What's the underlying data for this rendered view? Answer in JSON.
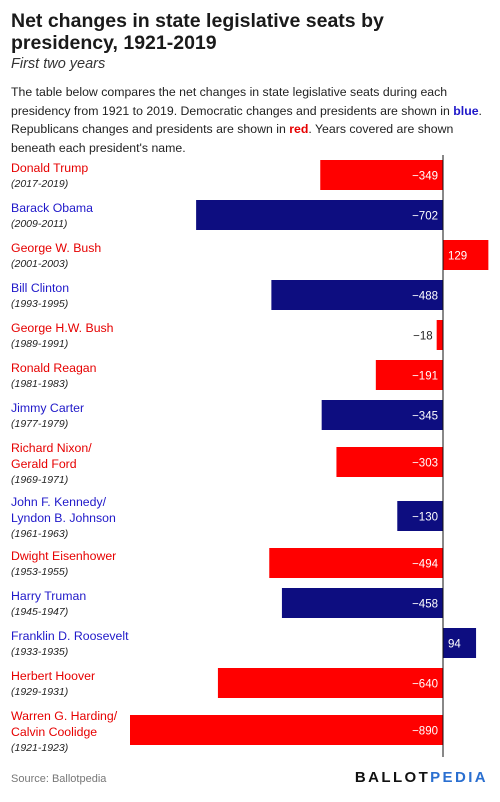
{
  "title": "Net changes in state legislative seats by presidency, 1921-2019",
  "subtitle": "First two years",
  "description": {
    "part1": "The table below compares the net changes in state legislative seats during each presidency from 1921 to 2019. Democratic changes and presidents are shown in ",
    "blue_word": "blue",
    "part2": ". Republicans changes and presidents are shown in ",
    "red_word": "red",
    "part3": ". Years covered are shown beneath each president's name."
  },
  "colors": {
    "democratic": "#0d0d80",
    "republican": "#ff0000",
    "dem_text": "#1f18c9",
    "rep_text": "#e60000"
  },
  "chart_data": {
    "type": "bar",
    "orientation": "horizontal",
    "rows": [
      {
        "president": [
          "Donald Trump"
        ],
        "years": "(2017-2019)",
        "party": "R",
        "value": -349,
        "label": "−349"
      },
      {
        "president": [
          "Barack Obama"
        ],
        "years": "(2009-2011)",
        "party": "D",
        "value": -702,
        "label": "−702"
      },
      {
        "president": [
          "George W. Bush"
        ],
        "years": "(2001-2003)",
        "party": "R",
        "value": 129,
        "label": "129"
      },
      {
        "president": [
          "Bill Clinton"
        ],
        "years": "(1993-1995)",
        "party": "D",
        "value": -488,
        "label": "−488"
      },
      {
        "president": [
          "George H.W. Bush"
        ],
        "years": "(1989-1991)",
        "party": "R",
        "value": -18,
        "label": "−18"
      },
      {
        "president": [
          "Ronald Reagan"
        ],
        "years": "(1981-1983)",
        "party": "R",
        "value": -191,
        "label": "−191"
      },
      {
        "president": [
          "Jimmy Carter"
        ],
        "years": "(1977-1979)",
        "party": "D",
        "value": -345,
        "label": "−345"
      },
      {
        "president": [
          "Richard Nixon/",
          "Gerald Ford"
        ],
        "years": "(1969-1971)",
        "party": "R",
        "value": -303,
        "label": "−303"
      },
      {
        "president": [
          "John F. Kennedy/",
          "Lyndon B. Johnson"
        ],
        "years": "(1961-1963)",
        "party": "D",
        "value": -130,
        "label": "−130"
      },
      {
        "president": [
          "Dwight Eisenhower"
        ],
        "years": "(1953-1955)",
        "party": "R",
        "value": -494,
        "label": "−494"
      },
      {
        "president": [
          "Harry Truman"
        ],
        "years": "(1945-1947)",
        "party": "D",
        "value": -458,
        "label": "−458"
      },
      {
        "president": [
          "Franklin D. Roosevelt"
        ],
        "years": "(1933-1935)",
        "party": "D",
        "value": 94,
        "label": "94"
      },
      {
        "president": [
          "Herbert Hoover"
        ],
        "years": "(1929-1931)",
        "party": "R",
        "value": -640,
        "label": "−640"
      },
      {
        "president": [
          "Warren G. Harding/",
          "Calvin Coolidge"
        ],
        "years": "(1921-1923)",
        "party": "R",
        "value": -890,
        "label": "−890"
      }
    ]
  },
  "footer": {
    "source": "Source: Ballotpedia",
    "logo_main": "BALLOT",
    "logo_accent": "PEDIA"
  }
}
